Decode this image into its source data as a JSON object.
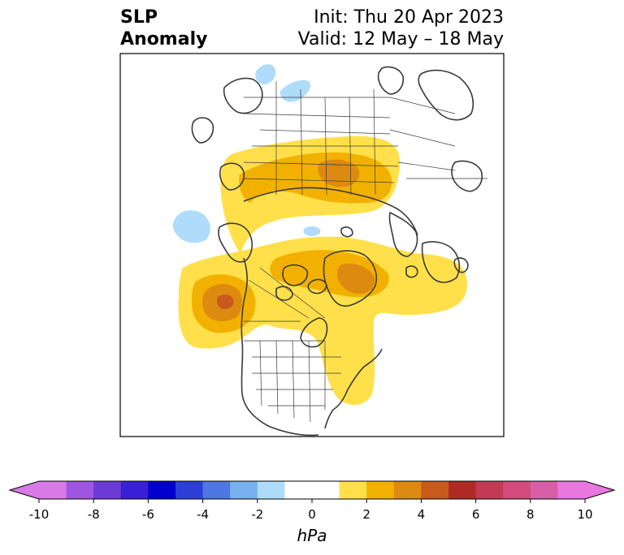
{
  "title": {
    "variable_line1": "SLP",
    "variable_line2": "Anomaly",
    "init": "Init: Thu 20 Apr 2023",
    "valid": "Valid: 12 May – 18 May"
  },
  "map": {
    "region": "North Polar Stereographic (Northern Hemisphere)",
    "colors": {
      "pos1": "#ffe04a",
      "pos2": "#f2b100",
      "pos3": "#dd8a10",
      "pos4": "#c85a1b",
      "neg1": "#aedcfa",
      "coast": "#3a3a3a"
    }
  },
  "colorbar": {
    "label": "hPa",
    "ticks": [
      "-10",
      "-8",
      "-6",
      "-4",
      "-2",
      "0",
      "2",
      "4",
      "6",
      "8",
      "10"
    ],
    "bins": [
      {
        "from": -10,
        "to": -9,
        "color": "#d77ae6"
      },
      {
        "from": -9,
        "to": -8,
        "color": "#9e55e0"
      },
      {
        "from": -8,
        "to": -7,
        "color": "#6b3ad6"
      },
      {
        "from": -7,
        "to": -6,
        "color": "#3a1fd4"
      },
      {
        "from": -6,
        "to": -5,
        "color": "#0000cc"
      },
      {
        "from": -5,
        "to": -4,
        "color": "#2b3fd8"
      },
      {
        "from": -4,
        "to": -3,
        "color": "#4d77e3"
      },
      {
        "from": -3,
        "to": -2,
        "color": "#78b0f0"
      },
      {
        "from": -2,
        "to": -1,
        "color": "#aedcfa"
      },
      {
        "from": -1,
        "to": 1,
        "color": "#ffffff"
      },
      {
        "from": 1,
        "to": 2,
        "color": "#ffe04a"
      },
      {
        "from": 2,
        "to": 3,
        "color": "#f2b100"
      },
      {
        "from": 3,
        "to": 4,
        "color": "#dd8a10"
      },
      {
        "from": 4,
        "to": 5,
        "color": "#c85a1b"
      },
      {
        "from": 5,
        "to": 6,
        "color": "#b02a25"
      },
      {
        "from": 6,
        "to": 7,
        "color": "#c23a55"
      },
      {
        "from": 7,
        "to": 8,
        "color": "#d24b7a"
      },
      {
        "from": 8,
        "to": 9,
        "color": "#d85fa7"
      },
      {
        "from": 9,
        "to": 10,
        "color": "#e877e0"
      }
    ],
    "extend_low_color": "#d77ae6",
    "extend_high_color": "#e877e0"
  }
}
